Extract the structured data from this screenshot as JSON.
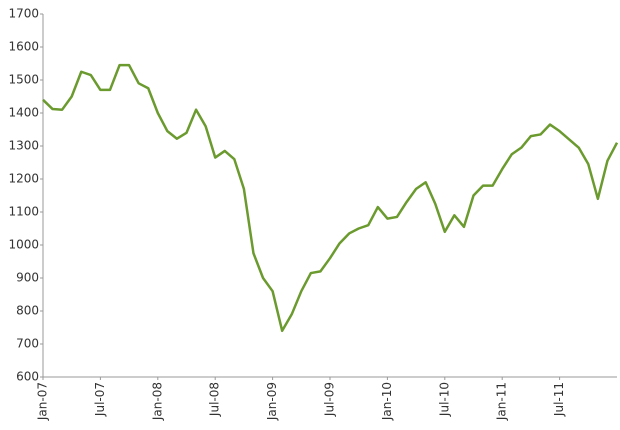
{
  "chart_data": {
    "type": "line",
    "x": [
      "2007-01",
      "2007-02",
      "2007-03",
      "2007-04",
      "2007-05",
      "2007-06",
      "2007-07",
      "2007-08",
      "2007-09",
      "2007-10",
      "2007-11",
      "2007-12",
      "2008-01",
      "2008-02",
      "2008-03",
      "2008-04",
      "2008-05",
      "2008-06",
      "2008-07",
      "2008-08",
      "2008-09",
      "2008-10",
      "2008-11",
      "2008-12",
      "2009-01",
      "2009-02",
      "2009-03",
      "2009-04",
      "2009-05",
      "2009-06",
      "2009-07",
      "2009-08",
      "2009-09",
      "2009-10",
      "2009-11",
      "2009-12",
      "2010-01",
      "2010-02",
      "2010-03",
      "2010-04",
      "2010-05",
      "2010-06",
      "2010-07",
      "2010-08",
      "2010-09",
      "2010-10",
      "2010-11",
      "2010-12",
      "2011-01",
      "2011-02",
      "2011-03",
      "2011-04",
      "2011-05",
      "2011-06",
      "2011-07",
      "2011-08",
      "2011-09",
      "2011-10",
      "2011-11",
      "2011-12",
      "2012-01"
    ],
    "series": [
      {
        "color": "#6b9a2e",
        "values": [
          1440,
          1412,
          1410,
          1450,
          1525,
          1515,
          1470,
          1470,
          1545,
          1545,
          1490,
          1475,
          1400,
          1345,
          1322,
          1340,
          1410,
          1360,
          1265,
          1285,
          1260,
          1170,
          975,
          900,
          860,
          740,
          790,
          860,
          915,
          920,
          960,
          1005,
          1035,
          1050,
          1060,
          1115,
          1080,
          1085,
          1130,
          1170,
          1190,
          1125,
          1040,
          1090,
          1055,
          1150,
          1180,
          1180,
          1230,
          1275,
          1295,
          1330,
          1335,
          1365,
          1345,
          1320,
          1295,
          1245,
          1140,
          1255,
          1310
        ]
      }
    ],
    "xlim": [
      "2007-01",
      "2012-01"
    ],
    "xticks": [
      {
        "value": "2007-01",
        "label": "Jan-07"
      },
      {
        "value": "2007-07",
        "label": "Jul-07"
      },
      {
        "value": "2008-01",
        "label": "Jan-08"
      },
      {
        "value": "2008-07",
        "label": "Jul-08"
      },
      {
        "value": "2009-01",
        "label": "Jan-09"
      },
      {
        "value": "2009-07",
        "label": "Jul-09"
      },
      {
        "value": "2010-01",
        "label": "Jan-10"
      },
      {
        "value": "2010-07",
        "label": "Jul-10"
      },
      {
        "value": "2011-01",
        "label": "Jan-11"
      },
      {
        "value": "2011-07",
        "label": "Jul-11"
      }
    ],
    "ylim": [
      600,
      1700
    ],
    "yticks": [
      600,
      700,
      800,
      900,
      1000,
      1100,
      1200,
      1300,
      1400,
      1500,
      1600,
      1700
    ],
    "grid": false
  }
}
